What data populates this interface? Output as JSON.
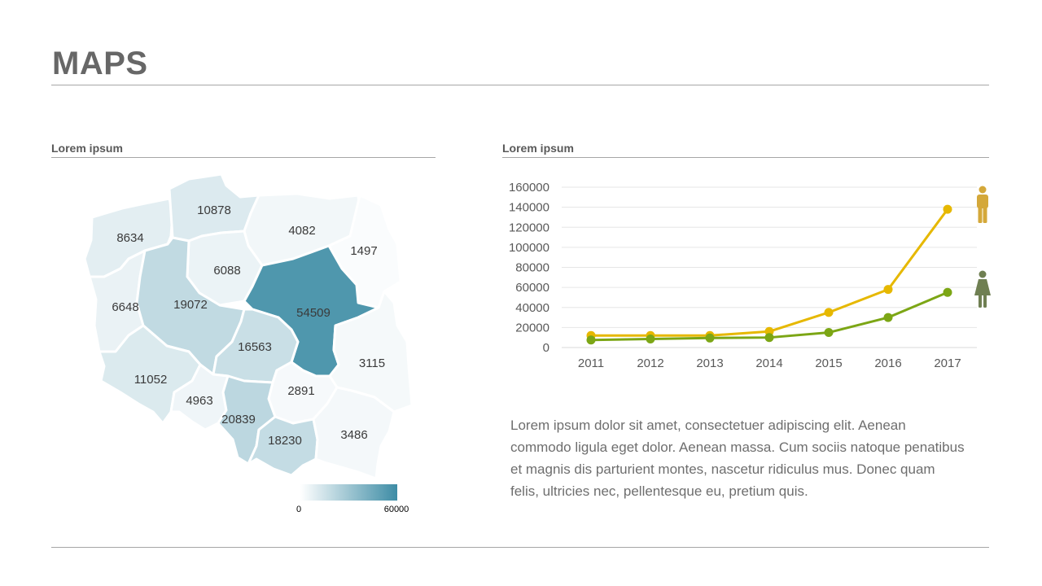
{
  "header": {
    "title": "MAPS"
  },
  "map_panel": {
    "title": "Lorem ipsum",
    "legend": {
      "min_label": "0",
      "max_label": "60000",
      "color_low": "#ffffff",
      "color_high": "#3d8ca5"
    }
  },
  "chart_panel": {
    "title": "Lorem ipsum"
  },
  "body_text": "Lorem ipsum dolor sit amet, consectetuer adipiscing elit. Aenean commodo ligula eget dolor. Aenean massa. Cum sociis natoque penatibus et magnis dis parturient montes, nascetur ridiculus mus. Donec quam felis, ultricies nec, pellentesque eu, pretium quis.",
  "chart_data": [
    {
      "type": "heatmap",
      "title": "",
      "color_scale": {
        "min": 0,
        "max": 60000
      },
      "regions": [
        {
          "id": "pomorskie",
          "label": "10878",
          "value": 10878
        },
        {
          "id": "zachodniopomorskie",
          "label": "8634",
          "value": 8634
        },
        {
          "id": "warminsko-mazurskie",
          "label": "4082",
          "value": 4082
        },
        {
          "id": "podlaskie",
          "label": "1497",
          "value": 1497
        },
        {
          "id": "kujawsko-pomorskie",
          "label": "6088",
          "value": 6088
        },
        {
          "id": "lubuskie",
          "label": "6648",
          "value": 6648
        },
        {
          "id": "wielkopolskie",
          "label": "19072",
          "value": 19072
        },
        {
          "id": "mazowieckie",
          "label": "54509",
          "value": 54509
        },
        {
          "id": "lodzkie",
          "label": "16563",
          "value": 16563
        },
        {
          "id": "lubelskie",
          "label": "3115",
          "value": 3115
        },
        {
          "id": "dolnoslaskie",
          "label": "11052",
          "value": 11052
        },
        {
          "id": "opolskie",
          "label": "4963",
          "value": 4963
        },
        {
          "id": "swietokrzyskie",
          "label": "2891",
          "value": 2891
        },
        {
          "id": "slaskie",
          "label": "20839",
          "value": 20839
        },
        {
          "id": "malopolskie",
          "label": "18230",
          "value": 18230
        },
        {
          "id": "podkarpackie",
          "label": "3486",
          "value": 3486
        }
      ]
    },
    {
      "type": "line",
      "title": "",
      "xlabel": "",
      "ylabel": "",
      "categories": [
        "2011",
        "2012",
        "2013",
        "2014",
        "2015",
        "2016",
        "2017"
      ],
      "ylim": [
        0,
        160000
      ],
      "yticks": [
        0,
        20000,
        40000,
        60000,
        80000,
        100000,
        120000,
        140000,
        160000
      ],
      "grid": true,
      "series": [
        {
          "icon": "male-icon",
          "color": "#e6b800",
          "values": [
            12000,
            12000,
            12000,
            16000,
            35000,
            58000,
            138000
          ]
        },
        {
          "icon": "female-icon",
          "color": "#7ca615",
          "values": [
            7500,
            8500,
            9500,
            10000,
            15000,
            30000,
            55000
          ]
        }
      ]
    }
  ]
}
